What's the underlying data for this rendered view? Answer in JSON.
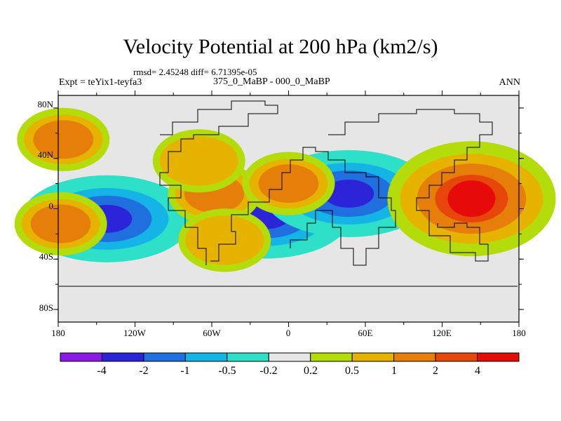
{
  "title": "Velocity Potential at 200 hPa (km2/s)",
  "stats_line": "rmsd= 2.45248 diff= 6.71395e-05",
  "experiment": "Expt = teYix1-teyfa3",
  "periods": "375_0_MaBP - 000_0_MaBP",
  "season": "ANN",
  "y_axis": {
    "labels": [
      "80N",
      "40N",
      "0",
      "40S",
      "80S"
    ],
    "values": [
      80,
      40,
      0,
      -40,
      -80
    ]
  },
  "x_axis": {
    "labels": [
      "180",
      "120W",
      "60W",
      "0",
      "60E",
      "120E",
      "180"
    ],
    "values": [
      -180,
      -120,
      -60,
      0,
      60,
      120,
      180
    ]
  },
  "colorbar": {
    "labels": [
      "-4",
      "-2",
      "-1",
      "-0.5",
      "-0.2",
      "0.2",
      "0.5",
      "1",
      "2",
      "4"
    ],
    "colors": [
      "#8C1AE6",
      "#2B24D9",
      "#1F6FDF",
      "#14B4E6",
      "#2EE0C8",
      "#E6E6E6",
      "#B4DC0A",
      "#E6B400",
      "#E67F0A",
      "#E6460A",
      "#E60A0A"
    ]
  },
  "map": {
    "lon_range": [
      -180,
      180
    ],
    "lat_range": [
      -90,
      90
    ],
    "centers": [
      {
        "lon": -142,
        "lat": -8,
        "level": -4.5
      },
      {
        "lon": -18,
        "lat": -5,
        "level": -4.2
      },
      {
        "lon": 47,
        "lat": 12,
        "level": -4.0
      },
      {
        "lon": 143,
        "lat": 8,
        "level": 4.6
      },
      {
        "lon": -176,
        "lat": 55,
        "level": 1.2
      },
      {
        "lon": -178,
        "lat": -12,
        "level": 1.4
      },
      {
        "lon": -58,
        "lat": 12,
        "level": 1.1
      },
      {
        "lon": -50,
        "lat": -25,
        "level": 0.9
      },
      {
        "lon": 0,
        "lat": 20,
        "level": 1.6
      },
      {
        "lon": -70,
        "lat": 38,
        "level": 0.5
      }
    ]
  }
}
